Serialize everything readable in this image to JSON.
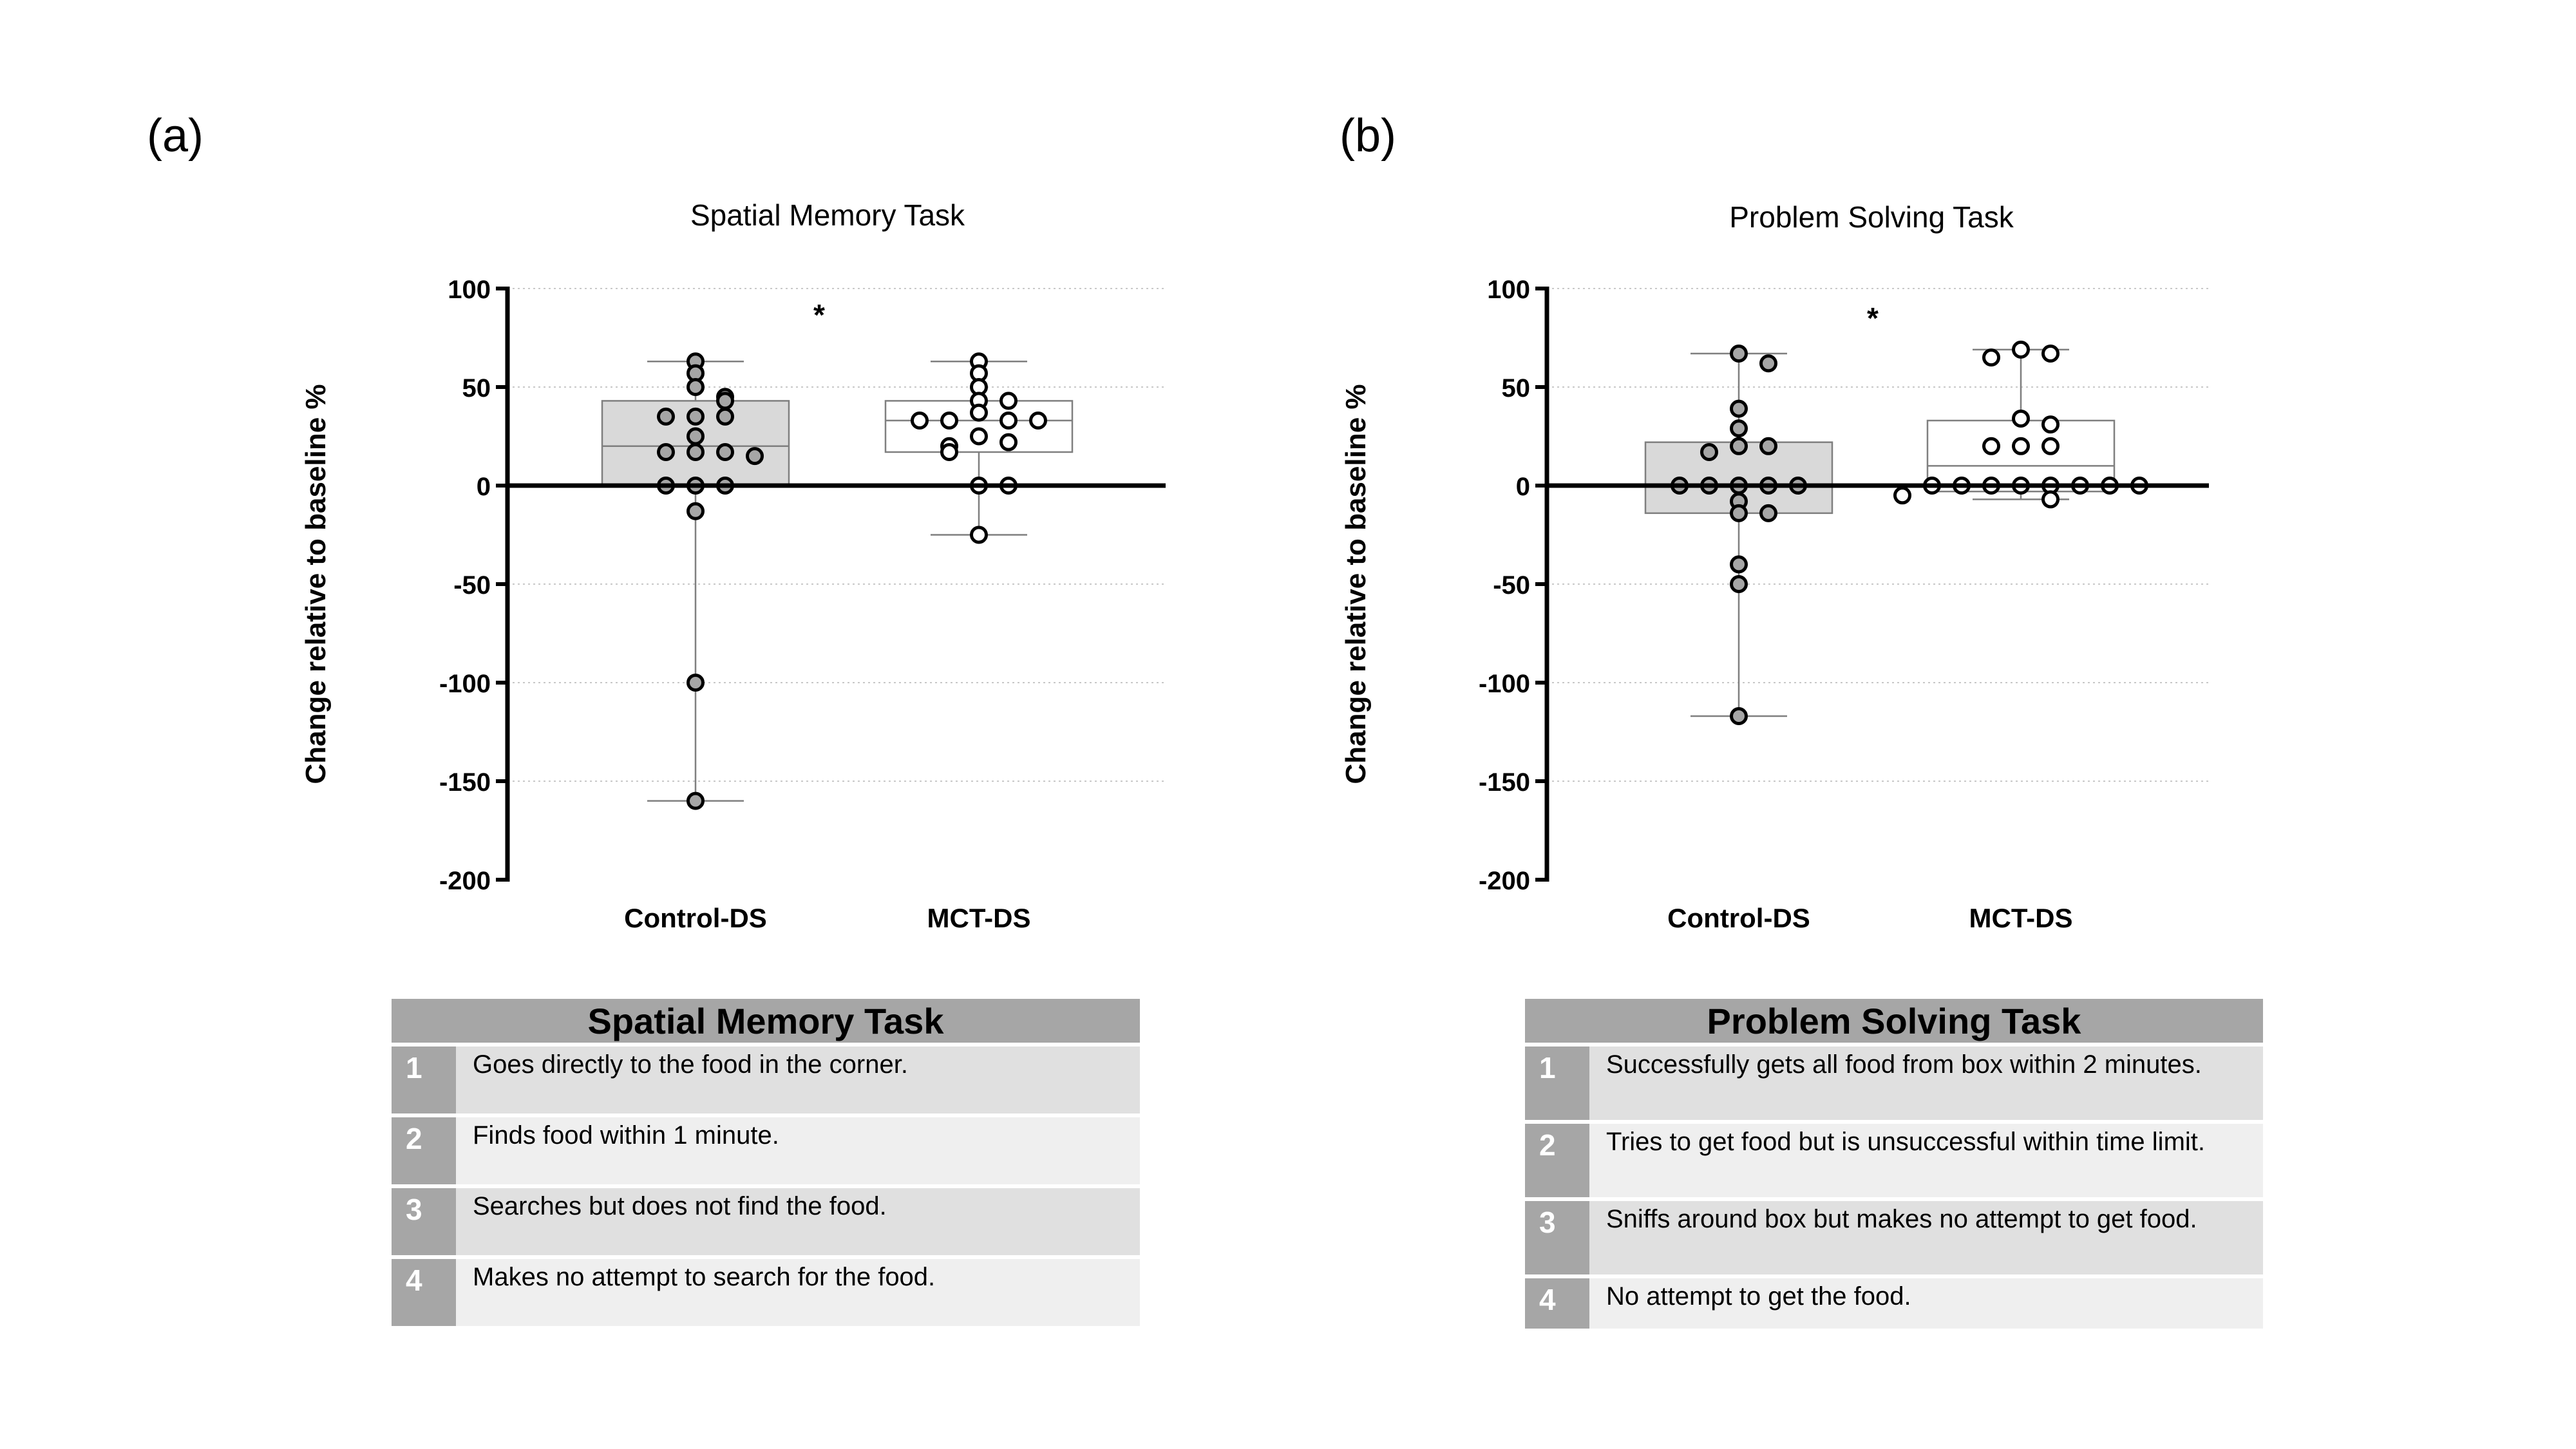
{
  "panels": [
    {
      "letter": "(a)"
    },
    {
      "letter": "(b)"
    }
  ],
  "chart_data": [
    {
      "type": "box",
      "title": "Spatial Memory Task",
      "ylabel": "Change relative to baseline %",
      "xlabel": "",
      "ylim": [
        -200,
        100
      ],
      "yticks": [
        100,
        50,
        0,
        -50,
        -100,
        -150,
        -200
      ],
      "grid": "horizontal dotted",
      "significance": "*",
      "categories": [
        "Control-DS",
        "MCT-DS"
      ],
      "groups": [
        {
          "name": "Control-DS",
          "fill": "#d9d9d9",
          "point_fill": "#a6a6a6",
          "box": {
            "min": -160,
            "q1": 0,
            "median": 20,
            "q3": 43,
            "max": 63
          },
          "points": [
            63,
            57,
            50,
            45,
            43,
            35,
            35,
            35,
            25,
            17,
            17,
            17,
            15,
            0,
            0,
            0,
            -13,
            -100,
            -160
          ]
        },
        {
          "name": "MCT-DS",
          "fill": "#ffffff",
          "point_fill": "#ffffff",
          "box": {
            "min": -25,
            "q1": 17,
            "median": 33,
            "q3": 43,
            "max": 63
          },
          "points": [
            63,
            57,
            50,
            43,
            43,
            37,
            33,
            33,
            33,
            33,
            25,
            22,
            20,
            17,
            0,
            0,
            -25
          ]
        }
      ]
    },
    {
      "type": "box",
      "title": "Problem Solving Task",
      "ylabel": "Change relative to baseline %",
      "xlabel": "",
      "ylim": [
        -200,
        100
      ],
      "yticks": [
        100,
        50,
        0,
        -50,
        -100,
        -150,
        -200
      ],
      "grid": "horizontal dotted",
      "significance": "*",
      "categories": [
        "Control-DS",
        "MCT-DS"
      ],
      "groups": [
        {
          "name": "Control-DS",
          "fill": "#d9d9d9",
          "point_fill": "#a6a6a6",
          "box": {
            "min": -117,
            "q1": -14,
            "median": 0,
            "q3": 22,
            "max": 67
          },
          "points": [
            67,
            62,
            39,
            29,
            20,
            20,
            17,
            0,
            0,
            0,
            0,
            0,
            -8,
            -14,
            -14,
            -40,
            -50,
            -117
          ]
        },
        {
          "name": "MCT-DS",
          "fill": "#ffffff",
          "point_fill": "#ffffff",
          "box": {
            "min": -7,
            "q1": -3,
            "median": 10,
            "q3": 33,
            "max": 69
          },
          "points": [
            69,
            67,
            65,
            34,
            31,
            20,
            20,
            20,
            0,
            0,
            0,
            0,
            0,
            0,
            0,
            0,
            -5,
            -7
          ]
        }
      ]
    }
  ],
  "tables": [
    {
      "title": "Spatial Memory Task",
      "rows": [
        {
          "num": "1",
          "text": "Goes directly to the food in the corner."
        },
        {
          "num": "2",
          "text": "Finds food within 1 minute."
        },
        {
          "num": "3",
          "text": "Searches but does not find the food."
        },
        {
          "num": "4",
          "text": "Makes no attempt to search for the food."
        }
      ]
    },
    {
      "title": "Problem Solving Task",
      "rows": [
        {
          "num": "1",
          "text": "Successfully gets all food from box within 2 minutes."
        },
        {
          "num": "2",
          "text": "Tries to get food but is unsuccessful within time limit."
        },
        {
          "num": "3",
          "text": "Sniffs around box but makes no attempt to get food."
        },
        {
          "num": "4",
          "text": "No attempt to get the food."
        }
      ]
    }
  ]
}
